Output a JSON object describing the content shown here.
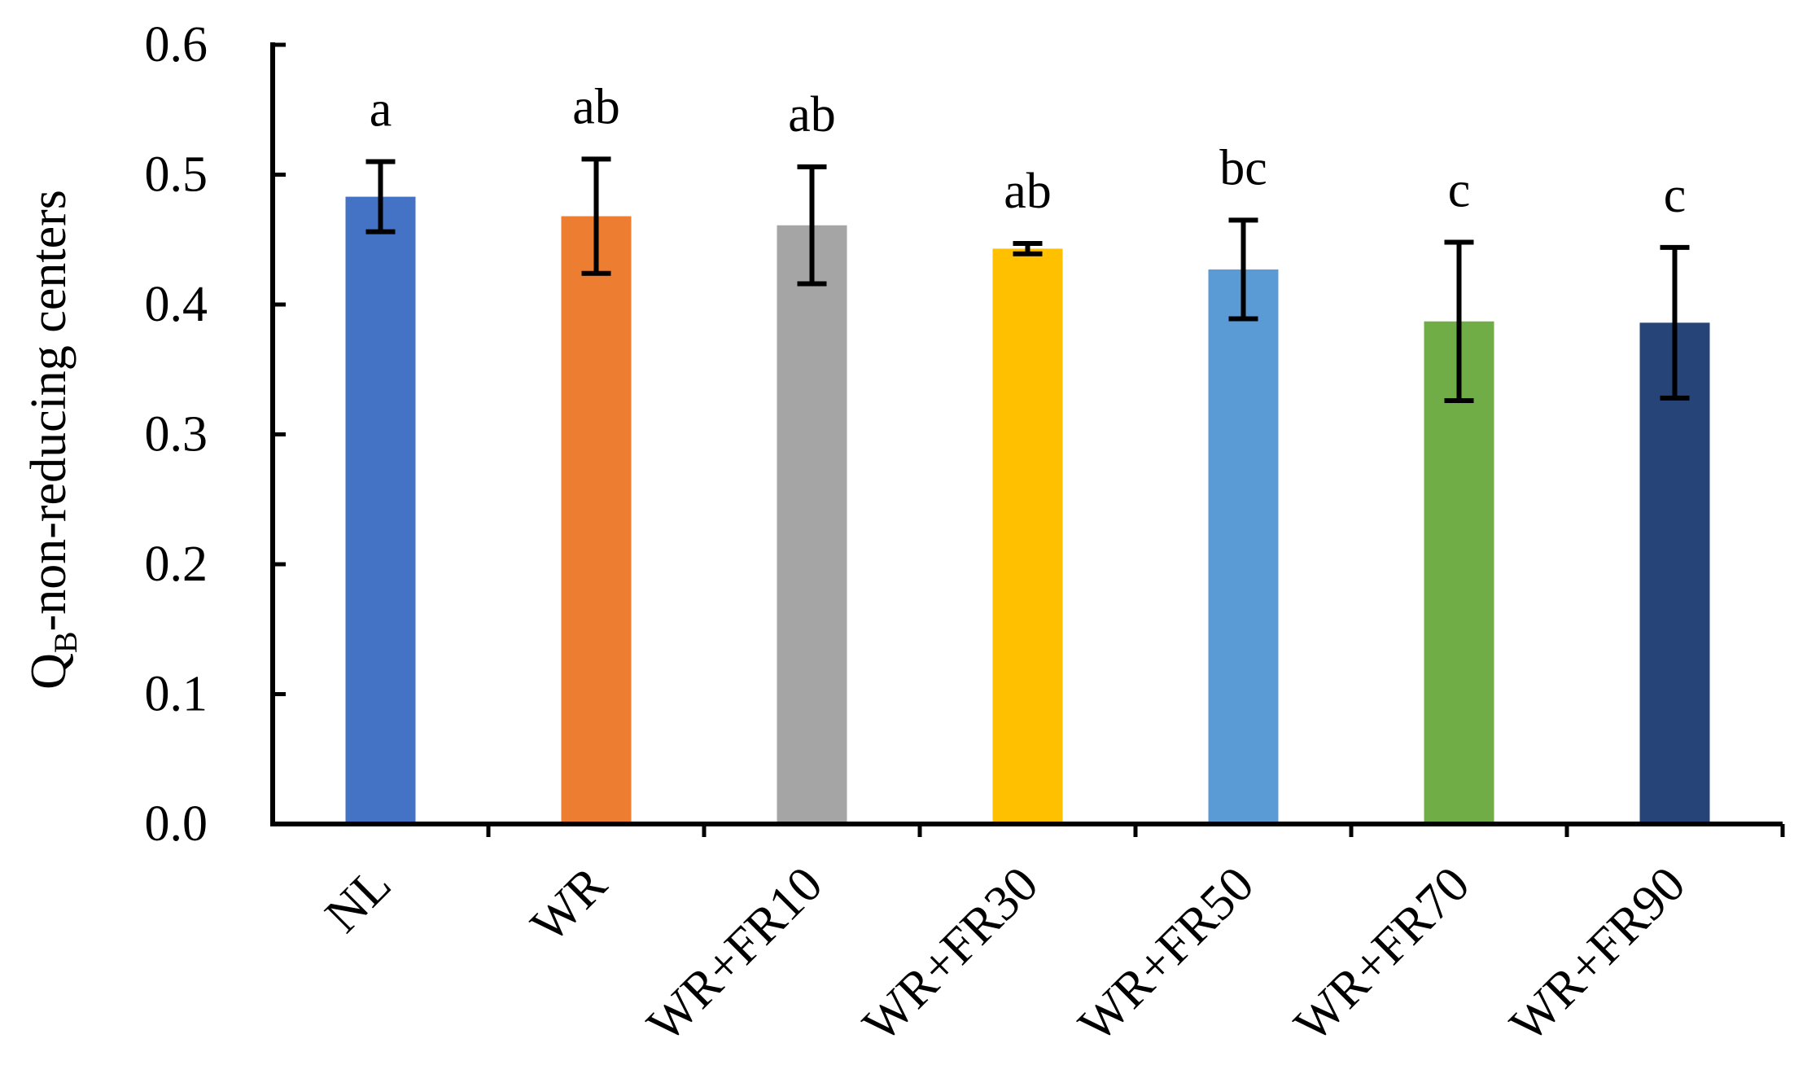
{
  "chart_data": {
    "type": "bar",
    "title": "",
    "xlabel": "",
    "ylabel": {
      "prefix": "Q",
      "subscript": "B",
      "suffix": "-non-reducing centers"
    },
    "ylim": [
      0,
      0.6
    ],
    "yticks": [
      "0.0",
      "0.1",
      "0.2",
      "0.3",
      "0.4",
      "0.5",
      "0.6"
    ],
    "grid": false,
    "legend": "none",
    "categories": [
      "NL",
      "WR",
      "WR+FR10",
      "WR+FR30",
      "WR+FR50",
      "WR+FR70",
      "WR+FR90"
    ],
    "values": [
      0.483,
      0.468,
      0.461,
      0.443,
      0.427,
      0.387,
      0.386
    ],
    "errors": [
      0.027,
      0.044,
      0.045,
      0.004,
      0.038,
      0.061,
      0.058
    ],
    "significance": [
      "a",
      "ab",
      "ab",
      "ab",
      "bc",
      "c",
      "c"
    ],
    "colors": [
      "#4472C4",
      "#ED7D31",
      "#A5A5A5",
      "#FFC000",
      "#5B9BD5",
      "#70AD47",
      "#264478"
    ]
  }
}
